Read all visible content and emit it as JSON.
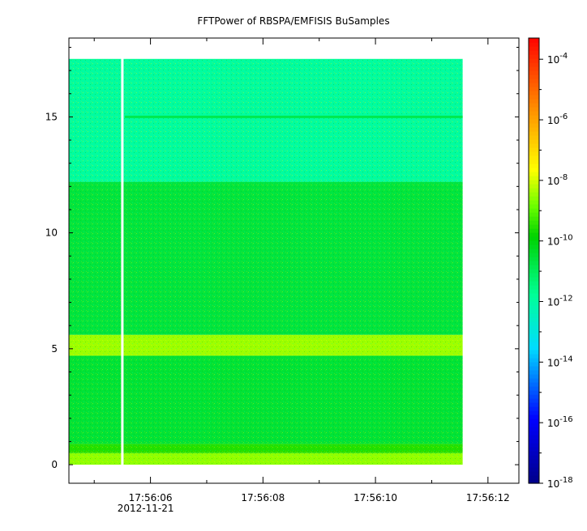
{
  "chart_data": {
    "type": "heatmap",
    "title": "FFTPower of RBSPA/EMFISIS  BuSamples",
    "xlabel": "",
    "ylabel": "",
    "x_ticks": [
      {
        "label": "17:56:06",
        "sublabel": "2012-11-21",
        "value_s": 6
      },
      {
        "label": "17:56:08",
        "sublabel": "",
        "value_s": 8
      },
      {
        "label": "17:56:10",
        "sublabel": "",
        "value_s": 10
      },
      {
        "label": "17:56:12",
        "sublabel": "",
        "value_s": 12
      }
    ],
    "x_minor_s": [
      5,
      7,
      9,
      11
    ],
    "xlim_s": [
      4.55,
      12.55
    ],
    "data_xrange_s": [
      4.55,
      11.55
    ],
    "gap_s": 5.5,
    "y_ticks": [
      0,
      5,
      10,
      15
    ],
    "ylim": [
      -0.8,
      18.4
    ],
    "data_yrange": [
      0,
      17.5
    ],
    "colorbar": {
      "scale": "log",
      "range_exp": [
        -18,
        -3.3
      ],
      "tick_exps": [
        -4,
        -6,
        -8,
        -10,
        -12,
        -14,
        -16,
        -18
      ],
      "tick_base": "10"
    },
    "power_bands": [
      {
        "y_from": 0,
        "y_to": 0.5,
        "log10_power": -8.6
      },
      {
        "y_from": 0.5,
        "y_to": 0.9,
        "log10_power": -9.6
      },
      {
        "y_from": 0.9,
        "y_to": 4.7,
        "log10_power": -10.6
      },
      {
        "y_from": 4.7,
        "y_to": 5.6,
        "log10_power": -8.5
      },
      {
        "y_from": 5.6,
        "y_to": 12.2,
        "log10_power": -10.7
      },
      {
        "y_from": 12.2,
        "y_to": 17.5,
        "log10_power": -12.0
      }
    ],
    "line_features": [
      {
        "y": 15.0,
        "log10_power": -10.9
      }
    ]
  }
}
